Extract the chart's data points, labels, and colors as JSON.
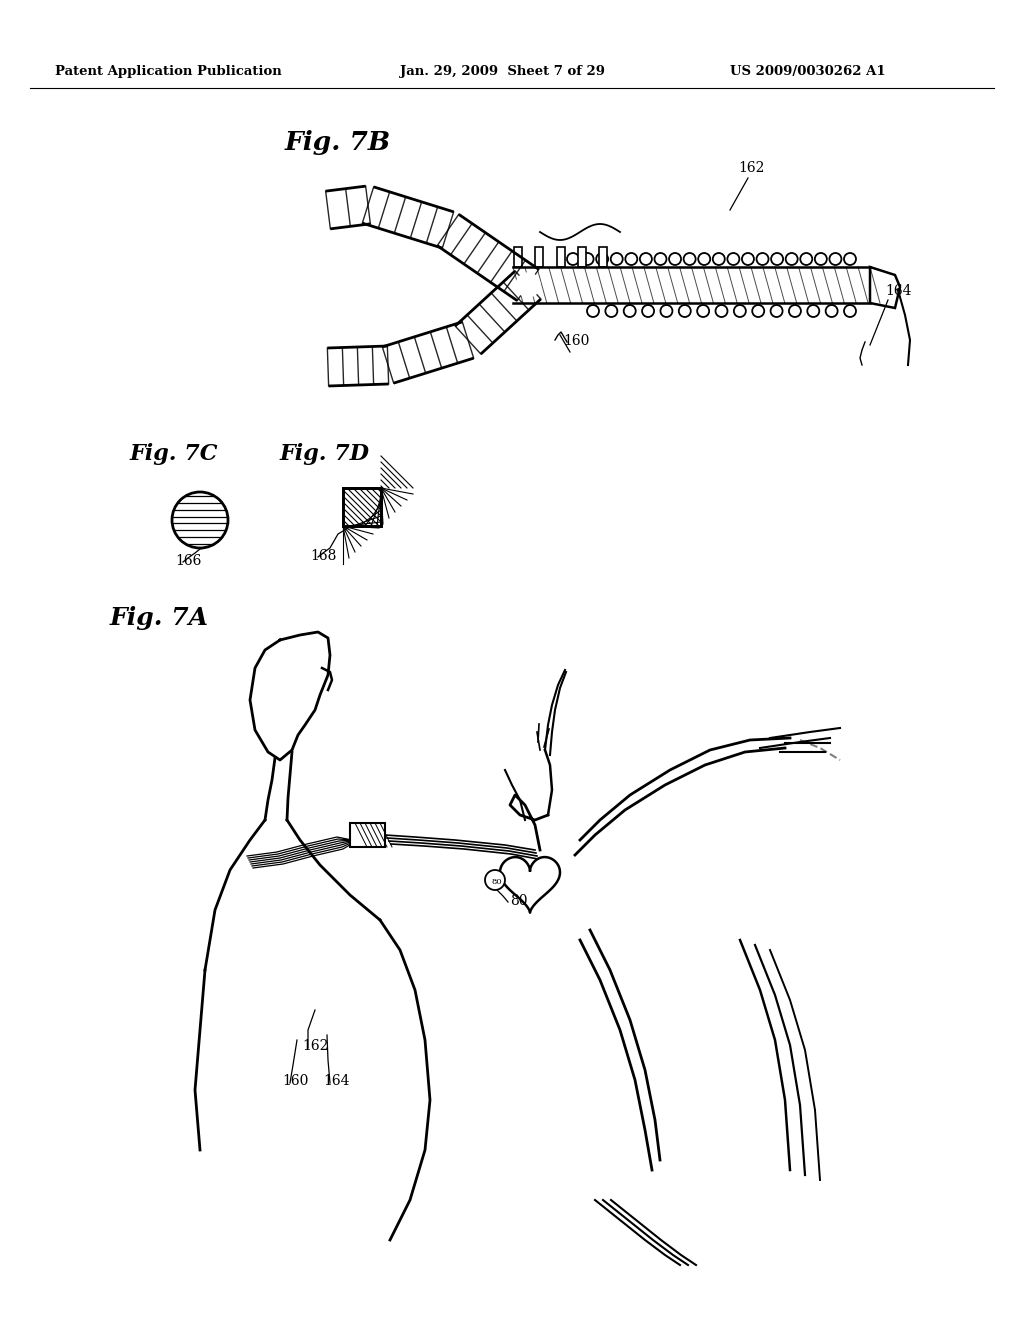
{
  "background_color": "#ffffff",
  "header_left": "Patent Application Publication",
  "header_center": "Jan. 29, 2009  Sheet 7 of 29",
  "header_right": "US 2009/0030262 A1",
  "fig_7A_label": "Fig. 7A",
  "fig_7B_label": "Fig. 7B",
  "fig_7C_label": "Fig. 7C",
  "fig_7D_label": "Fig. 7D",
  "label_160": "160",
  "label_162": "162",
  "label_164": "164",
  "label_166": "166",
  "label_168": "168",
  "label_80": "80"
}
